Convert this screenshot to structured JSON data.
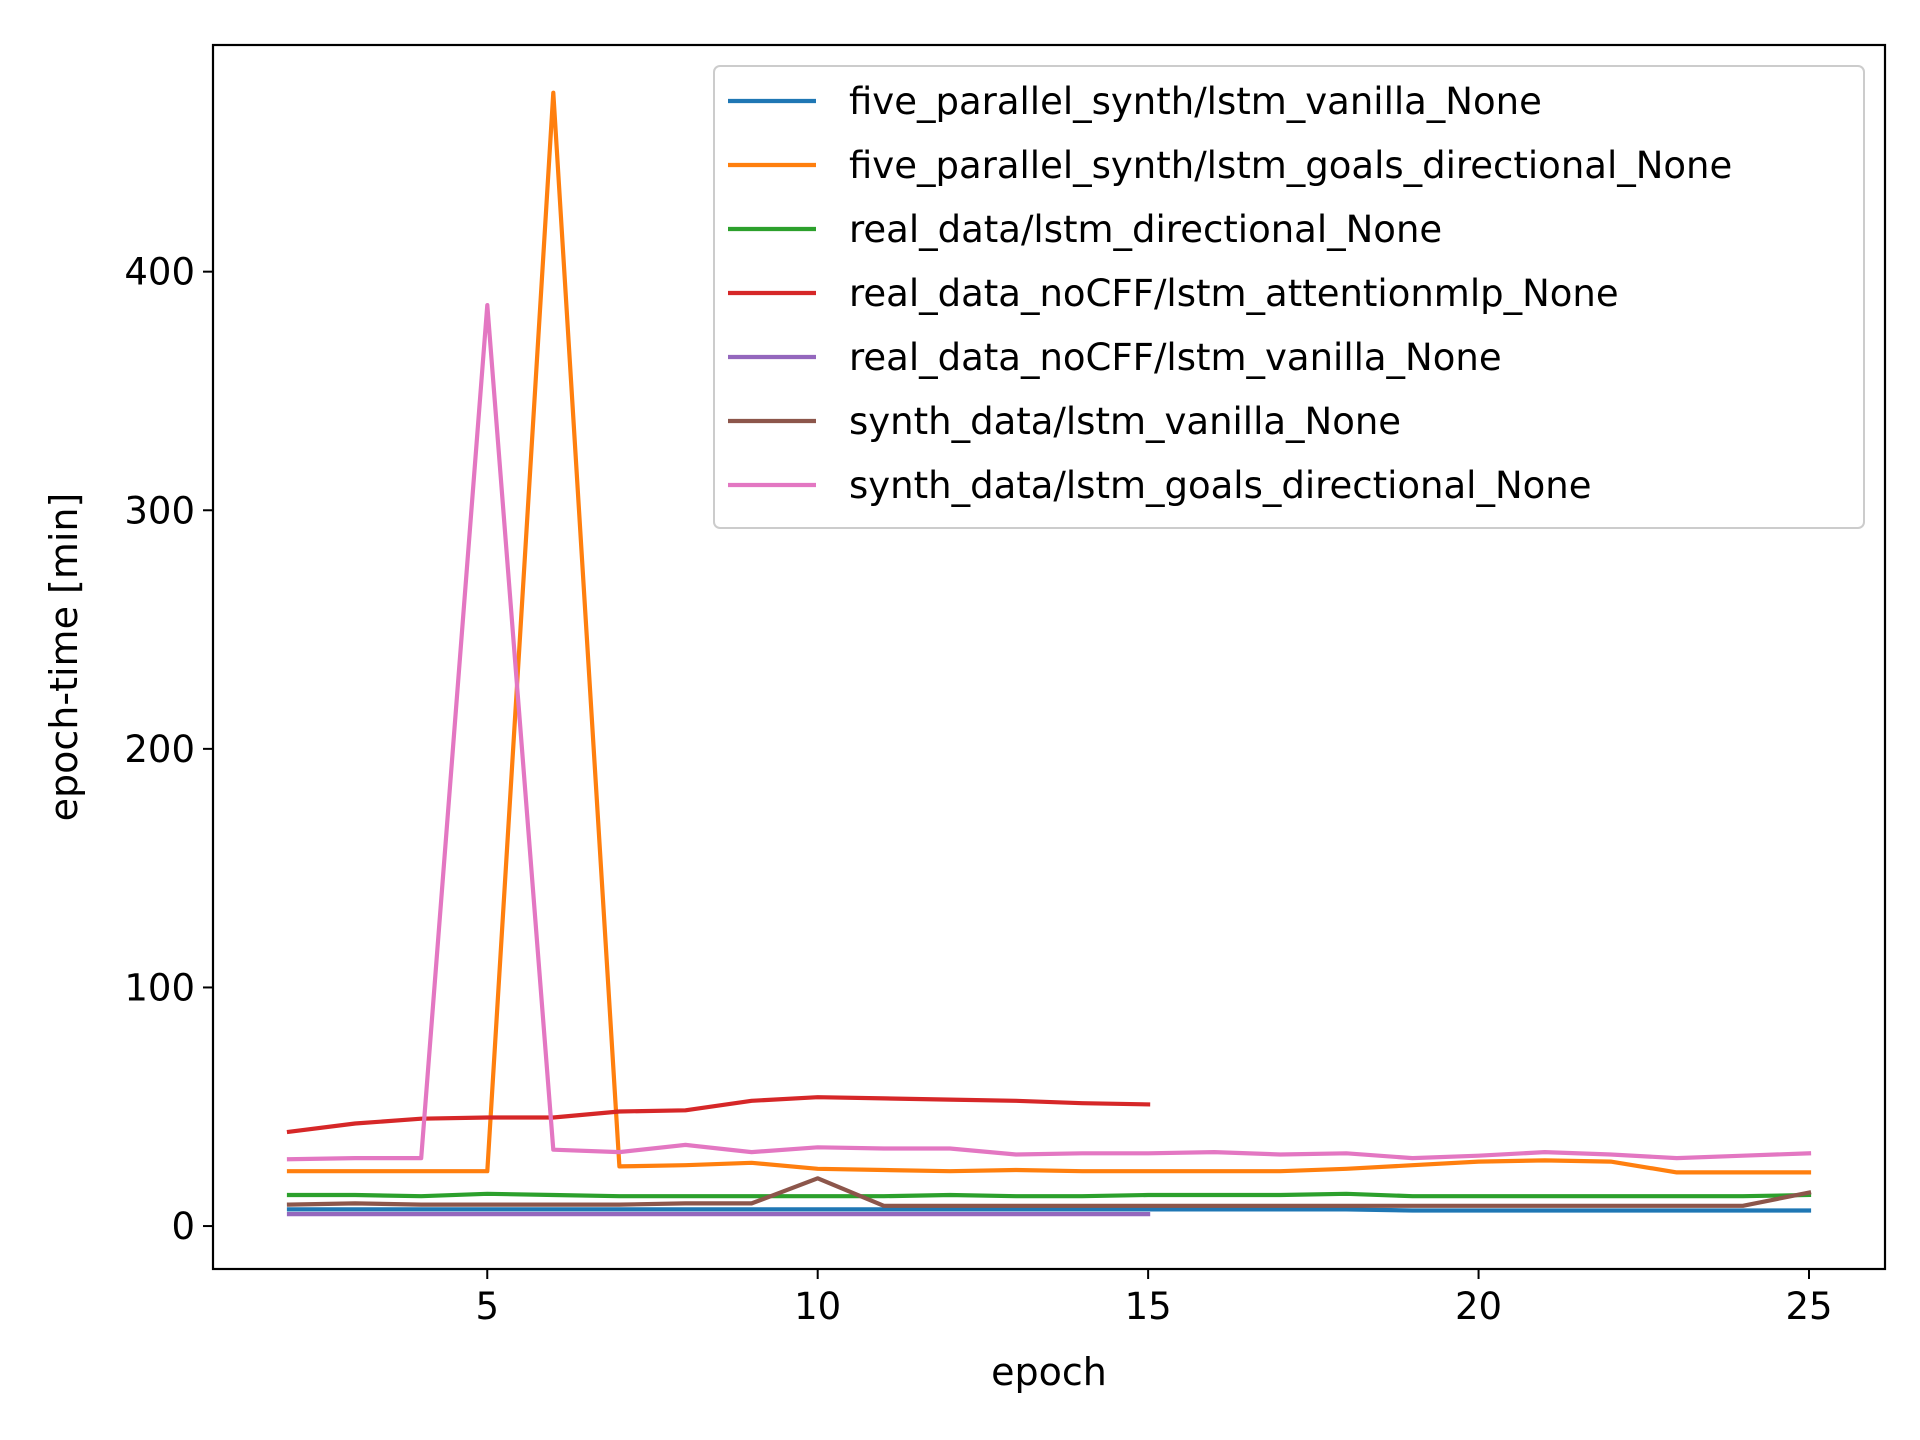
{
  "chart_data": {
    "type": "line",
    "xlabel": "epoch",
    "ylabel": "epoch-time [min]",
    "xlim": [
      0.85,
      26.15
    ],
    "ylim": [
      -18,
      495
    ],
    "xticks": [
      5,
      10,
      15,
      20,
      25
    ],
    "yticks": [
      0,
      100,
      200,
      300,
      400
    ],
    "grid": false,
    "legend_position": "upper right",
    "series": [
      {
        "name": "five_parallel_synth/lstm_vanilla_None",
        "color": "#1f77b4",
        "x": [
          2,
          3,
          4,
          5,
          6,
          7,
          8,
          9,
          10,
          11,
          12,
          13,
          14,
          15,
          16,
          17,
          18,
          19,
          20,
          21,
          22,
          23,
          24,
          25
        ],
        "y": [
          7,
          7,
          7,
          7,
          7,
          7,
          7,
          7,
          7,
          7,
          7,
          7,
          7,
          7,
          7,
          7,
          7,
          6.5,
          6.5,
          6.5,
          6.5,
          6.5,
          6.5,
          6.5
        ]
      },
      {
        "name": "five_parallel_synth/lstm_goals_directional_None",
        "color": "#ff7f0e",
        "x": [
          2,
          3,
          4,
          5,
          6,
          7,
          8,
          9,
          10,
          11,
          12,
          13,
          14,
          15,
          16,
          17,
          18,
          19,
          20,
          21,
          22,
          23,
          24,
          25
        ],
        "y": [
          23,
          23,
          23,
          23,
          475,
          25,
          25.5,
          26.5,
          24,
          23.5,
          23,
          23.5,
          23,
          23,
          23,
          23,
          24,
          25.5,
          27,
          27.5,
          27,
          22.5,
          22.5,
          22.5
        ]
      },
      {
        "name": "real_data/lstm_directional_None",
        "color": "#2ca02c",
        "x": [
          2,
          3,
          4,
          5,
          6,
          7,
          8,
          9,
          10,
          11,
          12,
          13,
          14,
          15,
          16,
          17,
          18,
          19,
          20,
          21,
          22,
          23,
          24,
          25
        ],
        "y": [
          13,
          13,
          12.5,
          13.5,
          13,
          12.5,
          12.5,
          12.5,
          12.5,
          12.5,
          13,
          12.5,
          12.5,
          13,
          13,
          13,
          13.5,
          12.5,
          12.5,
          12.5,
          12.5,
          12.5,
          12.5,
          13
        ]
      },
      {
        "name": "real_data_noCFF/lstm_attentionmlp_None",
        "color": "#d62728",
        "x": [
          2,
          3,
          4,
          5,
          6,
          7,
          8,
          9,
          10,
          11,
          12,
          13,
          14,
          15
        ],
        "y": [
          39.5,
          43,
          45,
          45.5,
          45.5,
          48,
          48.5,
          52.5,
          54,
          53.5,
          53,
          52.5,
          51.5,
          51
        ]
      },
      {
        "name": "real_data_noCFF/lstm_vanilla_None",
        "color": "#9467bd",
        "x": [
          2,
          3,
          4,
          5,
          6,
          7,
          8,
          9,
          10,
          11,
          12,
          13,
          14,
          15
        ],
        "y": [
          5,
          5,
          5,
          5,
          5,
          5,
          5,
          5,
          5,
          5,
          5,
          5,
          5,
          5
        ]
      },
      {
        "name": "synth_data/lstm_vanilla_None",
        "color": "#8c564b",
        "x": [
          2,
          3,
          4,
          5,
          6,
          7,
          8,
          9,
          10,
          11,
          12,
          13,
          14,
          15,
          16,
          17,
          18,
          19,
          20,
          21,
          22,
          23,
          24,
          25
        ],
        "y": [
          9,
          9.5,
          9,
          9,
          9,
          9,
          9.5,
          9.5,
          20,
          8.5,
          8.5,
          8.5,
          8.5,
          8.5,
          8.5,
          8.5,
          8.5,
          8.5,
          8.5,
          8.5,
          8.5,
          8.5,
          8.5,
          14
        ]
      },
      {
        "name": "synth_data/lstm_goals_directional_None",
        "color": "#e377c2",
        "x": [
          2,
          3,
          4,
          5,
          6,
          7,
          8,
          9,
          10,
          11,
          12,
          13,
          14,
          15,
          16,
          17,
          18,
          19,
          20,
          21,
          22,
          23,
          24,
          25
        ],
        "y": [
          28,
          28.5,
          28.5,
          386,
          32,
          31,
          34,
          31,
          33,
          32.5,
          32.5,
          30,
          30.5,
          30.5,
          31,
          30,
          30.5,
          28.5,
          29.5,
          31,
          30,
          28.5,
          29.5,
          30.5
        ]
      }
    ]
  }
}
